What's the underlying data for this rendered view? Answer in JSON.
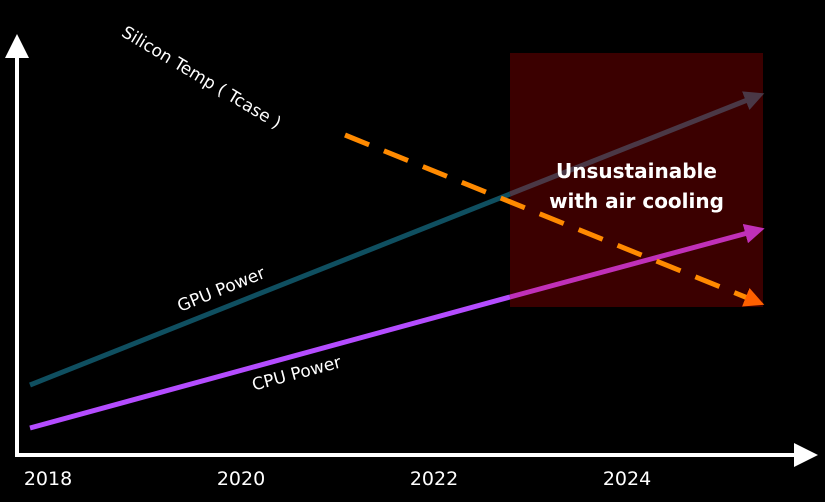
{
  "x_axis": {
    "ticks": [
      "2018",
      "2020",
      "2022",
      "2024"
    ]
  },
  "series_labels": {
    "gpu": "GPU Power",
    "cpu": "CPU Power",
    "temp": "Silicon Temp ( Tcase )"
  },
  "region": {
    "line1": "Unsustainable",
    "line2": "with air cooling"
  },
  "colors": {
    "gpu": "#0f4f60",
    "cpu": "#b44cff",
    "temp": "#ff8a00",
    "region": "#3b0000",
    "background": "#000000"
  }
}
